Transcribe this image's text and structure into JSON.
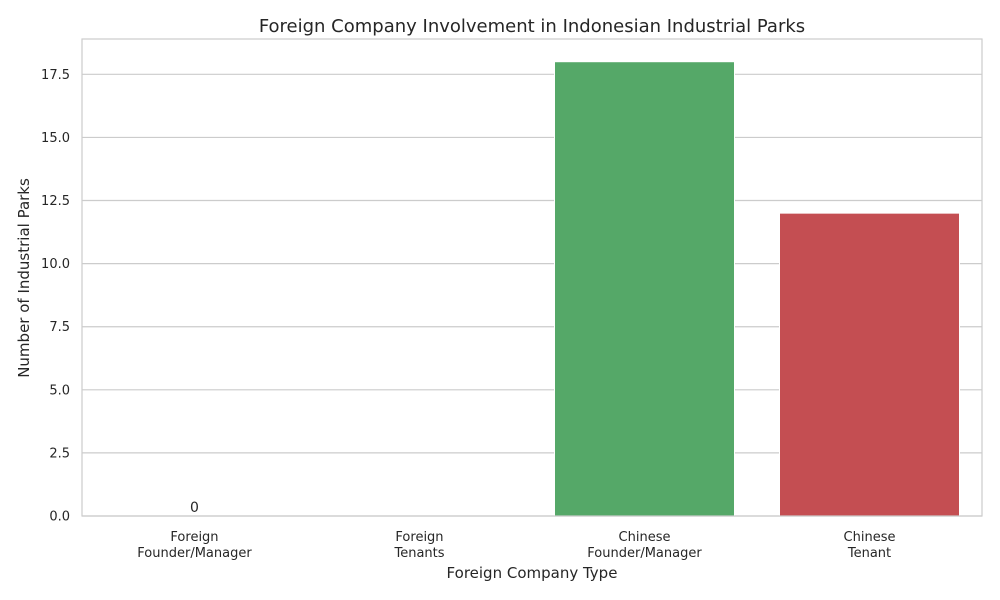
{
  "chart_data": {
    "type": "bar",
    "title": "Foreign Company Involvement in Indonesian Industrial Parks",
    "xlabel": "Foreign Company Type",
    "ylabel": "Number of Industrial Parks",
    "categories": [
      [
        "Foreign",
        "Founder/Manager"
      ],
      [
        "Foreign",
        "Tenants"
      ],
      [
        "Chinese",
        "Founder/Manager"
      ],
      [
        "Chinese",
        "Tenant"
      ]
    ],
    "values": [
      0,
      0,
      18,
      12
    ],
    "data_labels": [
      "0",
      "",
      "",
      ""
    ],
    "colors": [
      "#4c72b0",
      "#dd8452",
      "#55a868",
      "#c44e52"
    ],
    "ylim": [
      0,
      18.9
    ],
    "yticks": [
      0.0,
      2.5,
      5.0,
      7.5,
      10.0,
      12.5,
      15.0,
      17.5
    ],
    "ytick_labels": [
      "0.0",
      "2.5",
      "5.0",
      "7.5",
      "10.0",
      "12.5",
      "15.0",
      "17.5"
    ],
    "grid": true,
    "grid_axis": "y"
  }
}
